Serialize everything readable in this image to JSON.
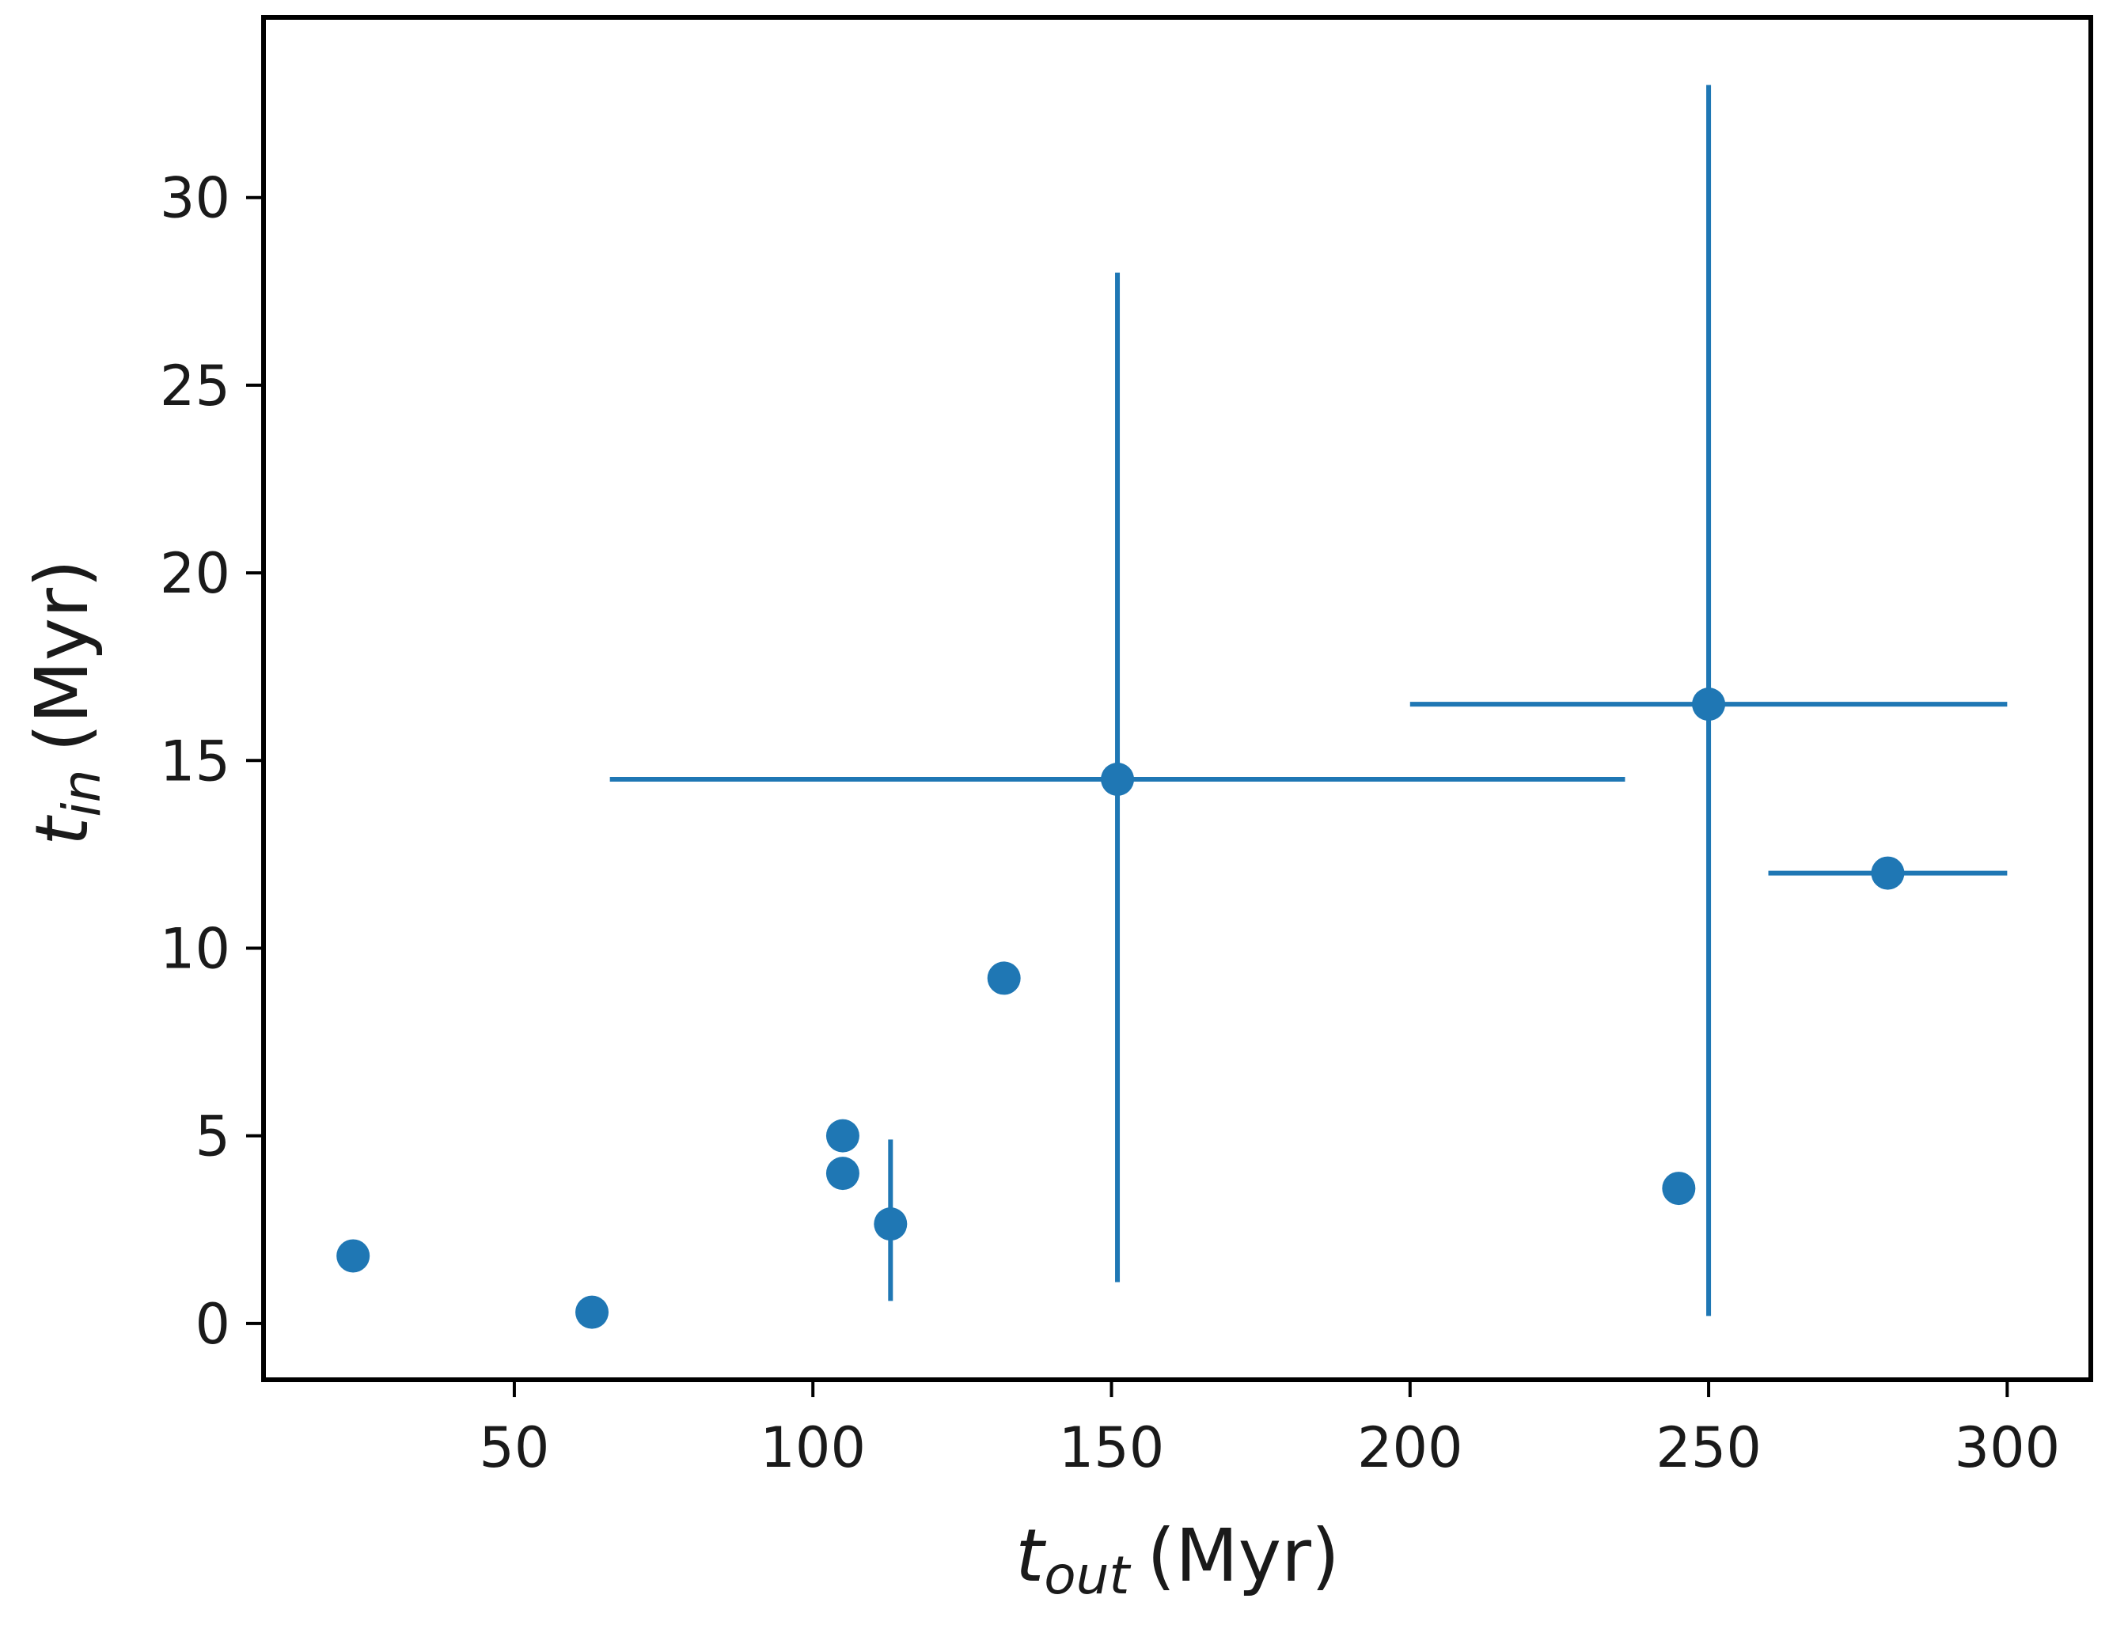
{
  "chart_data": {
    "type": "scatter",
    "title": "",
    "xlabel": {
      "symbol": "t",
      "subscript": "out",
      "unit": "(Myr)"
    },
    "ylabel": {
      "symbol": "t",
      "subscript": "in",
      "unit": "(Myr)"
    },
    "xlim": [
      8,
      314
    ],
    "ylim": [
      -1.5,
      34.8
    ],
    "x_ticks": [
      50,
      100,
      150,
      200,
      250,
      300
    ],
    "y_ticks": [
      0,
      5,
      10,
      15,
      20,
      25,
      30
    ],
    "grid": false,
    "legend": "none",
    "marker_color": "#1f77b4",
    "points": [
      {
        "x": 23,
        "y": 1.8
      },
      {
        "x": 63,
        "y": 0.3
      },
      {
        "x": 105,
        "y": 5.0
      },
      {
        "x": 105,
        "y": 4.0
      },
      {
        "x": 113,
        "y": 2.65,
        "y_err": [
          0.6,
          4.9
        ]
      },
      {
        "x": 132,
        "y": 9.2
      },
      {
        "x": 151,
        "y": 14.5,
        "x_err": [
          66,
          236
        ],
        "y_err": [
          1.1,
          28.0
        ]
      },
      {
        "x": 245,
        "y": 3.6
      },
      {
        "x": 250,
        "y": 16.5,
        "x_err": [
          200,
          300
        ],
        "y_err": [
          0.2,
          33.0
        ]
      },
      {
        "x": 280,
        "y": 12.0,
        "x_err": [
          260,
          300
        ]
      }
    ]
  }
}
